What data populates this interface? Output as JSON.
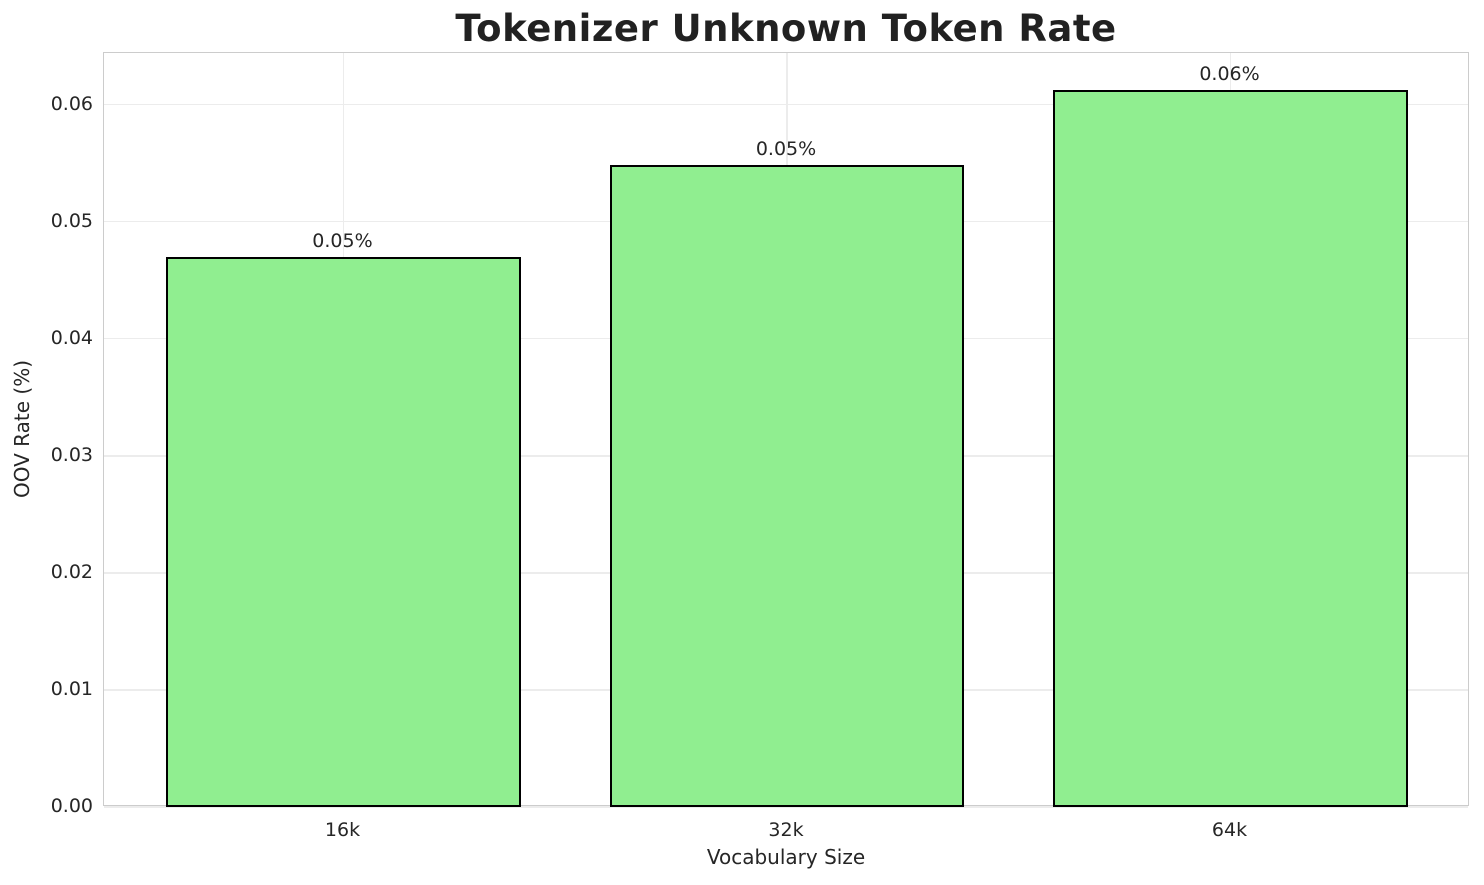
{
  "chart_data": {
    "type": "bar",
    "title": "Tokenizer Unknown Token Rate",
    "xlabel": "Vocabulary Size",
    "ylabel": "OOV Rate (%)",
    "categories": [
      "16k",
      "32k",
      "64k"
    ],
    "values": [
      0.047,
      0.0548,
      0.0612
    ],
    "bar_labels": [
      "0.05%",
      "0.05%",
      "0.06%"
    ],
    "ylim": [
      0,
      0.0644
    ],
    "yticks": [
      0,
      0.01,
      0.02,
      0.03,
      0.04,
      0.05,
      0.06
    ],
    "ytick_labels": [
      "0.00",
      "0.01",
      "0.02",
      "0.03",
      "0.04",
      "0.05",
      "0.06"
    ],
    "grid": true,
    "legend_position": "none",
    "colors": {
      "bar_fill": "#90EE90",
      "bar_edge": "#000000",
      "grid": "#ececec",
      "spine": "#cccccc",
      "text": "#262626",
      "title_text": "#212121",
      "background": "#ffffff"
    }
  }
}
